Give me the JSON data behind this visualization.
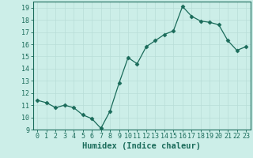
{
  "x": [
    0,
    1,
    2,
    3,
    4,
    5,
    6,
    7,
    8,
    9,
    10,
    11,
    12,
    13,
    14,
    15,
    16,
    17,
    18,
    19,
    20,
    21,
    22,
    23
  ],
  "y": [
    11.4,
    11.2,
    10.8,
    11.0,
    10.8,
    10.2,
    9.9,
    9.1,
    10.5,
    12.8,
    14.9,
    14.4,
    15.8,
    16.3,
    16.8,
    17.1,
    19.1,
    18.3,
    17.9,
    17.8,
    17.6,
    16.3,
    15.5,
    15.8
  ],
  "line_color": "#1a6b5a",
  "marker": "D",
  "marker_size": 2.5,
  "bg_color": "#cceee8",
  "grid_color": "#b8ddd8",
  "xlabel": "Humidex (Indice chaleur)",
  "ylim": [
    9,
    19.5
  ],
  "xlim": [
    -0.5,
    23.5
  ],
  "yticks": [
    9,
    10,
    11,
    12,
    13,
    14,
    15,
    16,
    17,
    18,
    19
  ],
  "xticks": [
    0,
    1,
    2,
    3,
    4,
    5,
    6,
    7,
    8,
    9,
    10,
    11,
    12,
    13,
    14,
    15,
    16,
    17,
    18,
    19,
    20,
    21,
    22,
    23
  ],
  "font_color": "#1a6b5a",
  "tick_labelsize": 6,
  "xlabel_fontsize": 7.5
}
